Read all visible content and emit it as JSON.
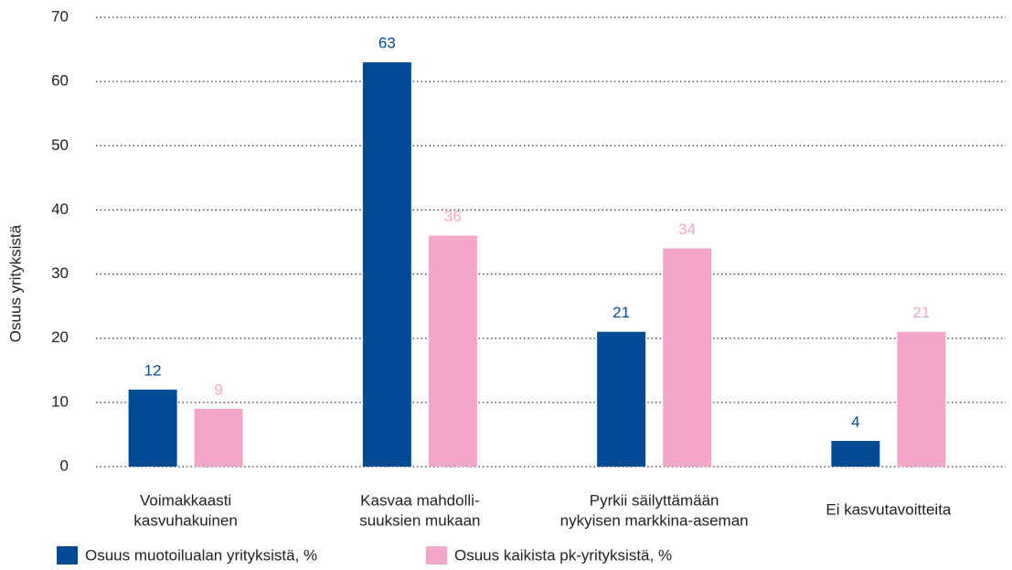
{
  "chart_data": {
    "type": "bar",
    "y_label": "Osuus yrityksistä",
    "categories": [
      [
        "Voimakkaasti",
        "kasvuhakuinen"
      ],
      [
        "Kasvaa mahdolli-",
        "suuksien mukaan"
      ],
      [
        "Pyrkii säilyttämään",
        "nykyisen markkina-aseman"
      ],
      [
        "Ei kasvutavoitteita"
      ]
    ],
    "series": [
      {
        "name": "Osuus muotoilualan yrityksistä, %",
        "color": "#004b93",
        "values": [
          12,
          63,
          21,
          4
        ]
      },
      {
        "name": "Osuus kaikista pk-yrityksistä, %",
        "color": "#f4a6c9",
        "values": [
          9,
          36,
          34,
          21
        ]
      }
    ],
    "ylim": [
      0,
      70
    ],
    "yticks": [
      0,
      10,
      20,
      30,
      40,
      50,
      60,
      70
    ],
    "grid": true
  }
}
